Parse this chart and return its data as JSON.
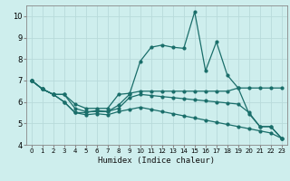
{
  "xlabel": "Humidex (Indice chaleur)",
  "bg_color": "#ceeeed",
  "line_color": "#1a6e6a",
  "grid_color": "#b8dada",
  "xlim": [
    -0.5,
    23.5
  ],
  "ylim": [
    4,
    10.5
  ],
  "xticks": [
    0,
    1,
    2,
    3,
    4,
    5,
    6,
    7,
    8,
    9,
    10,
    11,
    12,
    13,
    14,
    15,
    16,
    17,
    18,
    19,
    20,
    21,
    22,
    23
  ],
  "yticks": [
    4,
    5,
    6,
    7,
    8,
    9,
    10
  ],
  "line1_x": [
    0,
    1,
    2,
    3,
    4,
    5,
    6,
    7,
    8,
    9,
    10,
    11,
    12,
    13,
    14,
    15,
    16,
    17,
    18,
    19,
    20,
    21,
    22,
    23
  ],
  "line1_y": [
    7.0,
    6.6,
    6.35,
    6.0,
    5.5,
    5.5,
    5.6,
    5.55,
    5.85,
    6.35,
    7.9,
    8.55,
    8.65,
    8.55,
    8.5,
    10.2,
    7.45,
    8.8,
    7.25,
    6.65,
    5.45,
    4.85,
    4.85,
    4.3
  ],
  "line2_x": [
    0,
    1,
    2,
    3,
    4,
    5,
    6,
    7,
    8,
    9,
    10,
    11,
    12,
    13,
    14,
    15,
    16,
    17,
    18,
    19,
    20,
    21,
    22,
    23
  ],
  "line2_y": [
    7.0,
    6.6,
    6.35,
    6.35,
    5.9,
    5.7,
    5.7,
    5.7,
    6.35,
    6.4,
    6.5,
    6.5,
    6.5,
    6.5,
    6.5,
    6.5,
    6.5,
    6.5,
    6.5,
    6.65,
    6.65,
    6.65,
    6.65,
    6.65
  ],
  "line3_x": [
    0,
    1,
    2,
    3,
    4,
    5,
    6,
    7,
    8,
    9,
    10,
    11,
    12,
    13,
    14,
    15,
    16,
    17,
    18,
    19,
    20,
    21,
    22,
    23
  ],
  "line3_y": [
    7.0,
    6.6,
    6.35,
    6.35,
    5.7,
    5.55,
    5.55,
    5.55,
    5.7,
    6.2,
    6.35,
    6.3,
    6.25,
    6.2,
    6.15,
    6.1,
    6.05,
    6.0,
    5.95,
    5.9,
    5.5,
    4.85,
    4.85,
    4.3
  ],
  "line4_x": [
    0,
    1,
    2,
    3,
    4,
    5,
    6,
    7,
    8,
    9,
    10,
    11,
    12,
    13,
    14,
    15,
    16,
    17,
    18,
    19,
    20,
    21,
    22,
    23
  ],
  "line4_y": [
    7.0,
    6.6,
    6.35,
    6.0,
    5.5,
    5.4,
    5.45,
    5.4,
    5.55,
    5.65,
    5.75,
    5.65,
    5.55,
    5.45,
    5.35,
    5.25,
    5.15,
    5.05,
    4.95,
    4.85,
    4.75,
    4.65,
    4.55,
    4.3
  ]
}
